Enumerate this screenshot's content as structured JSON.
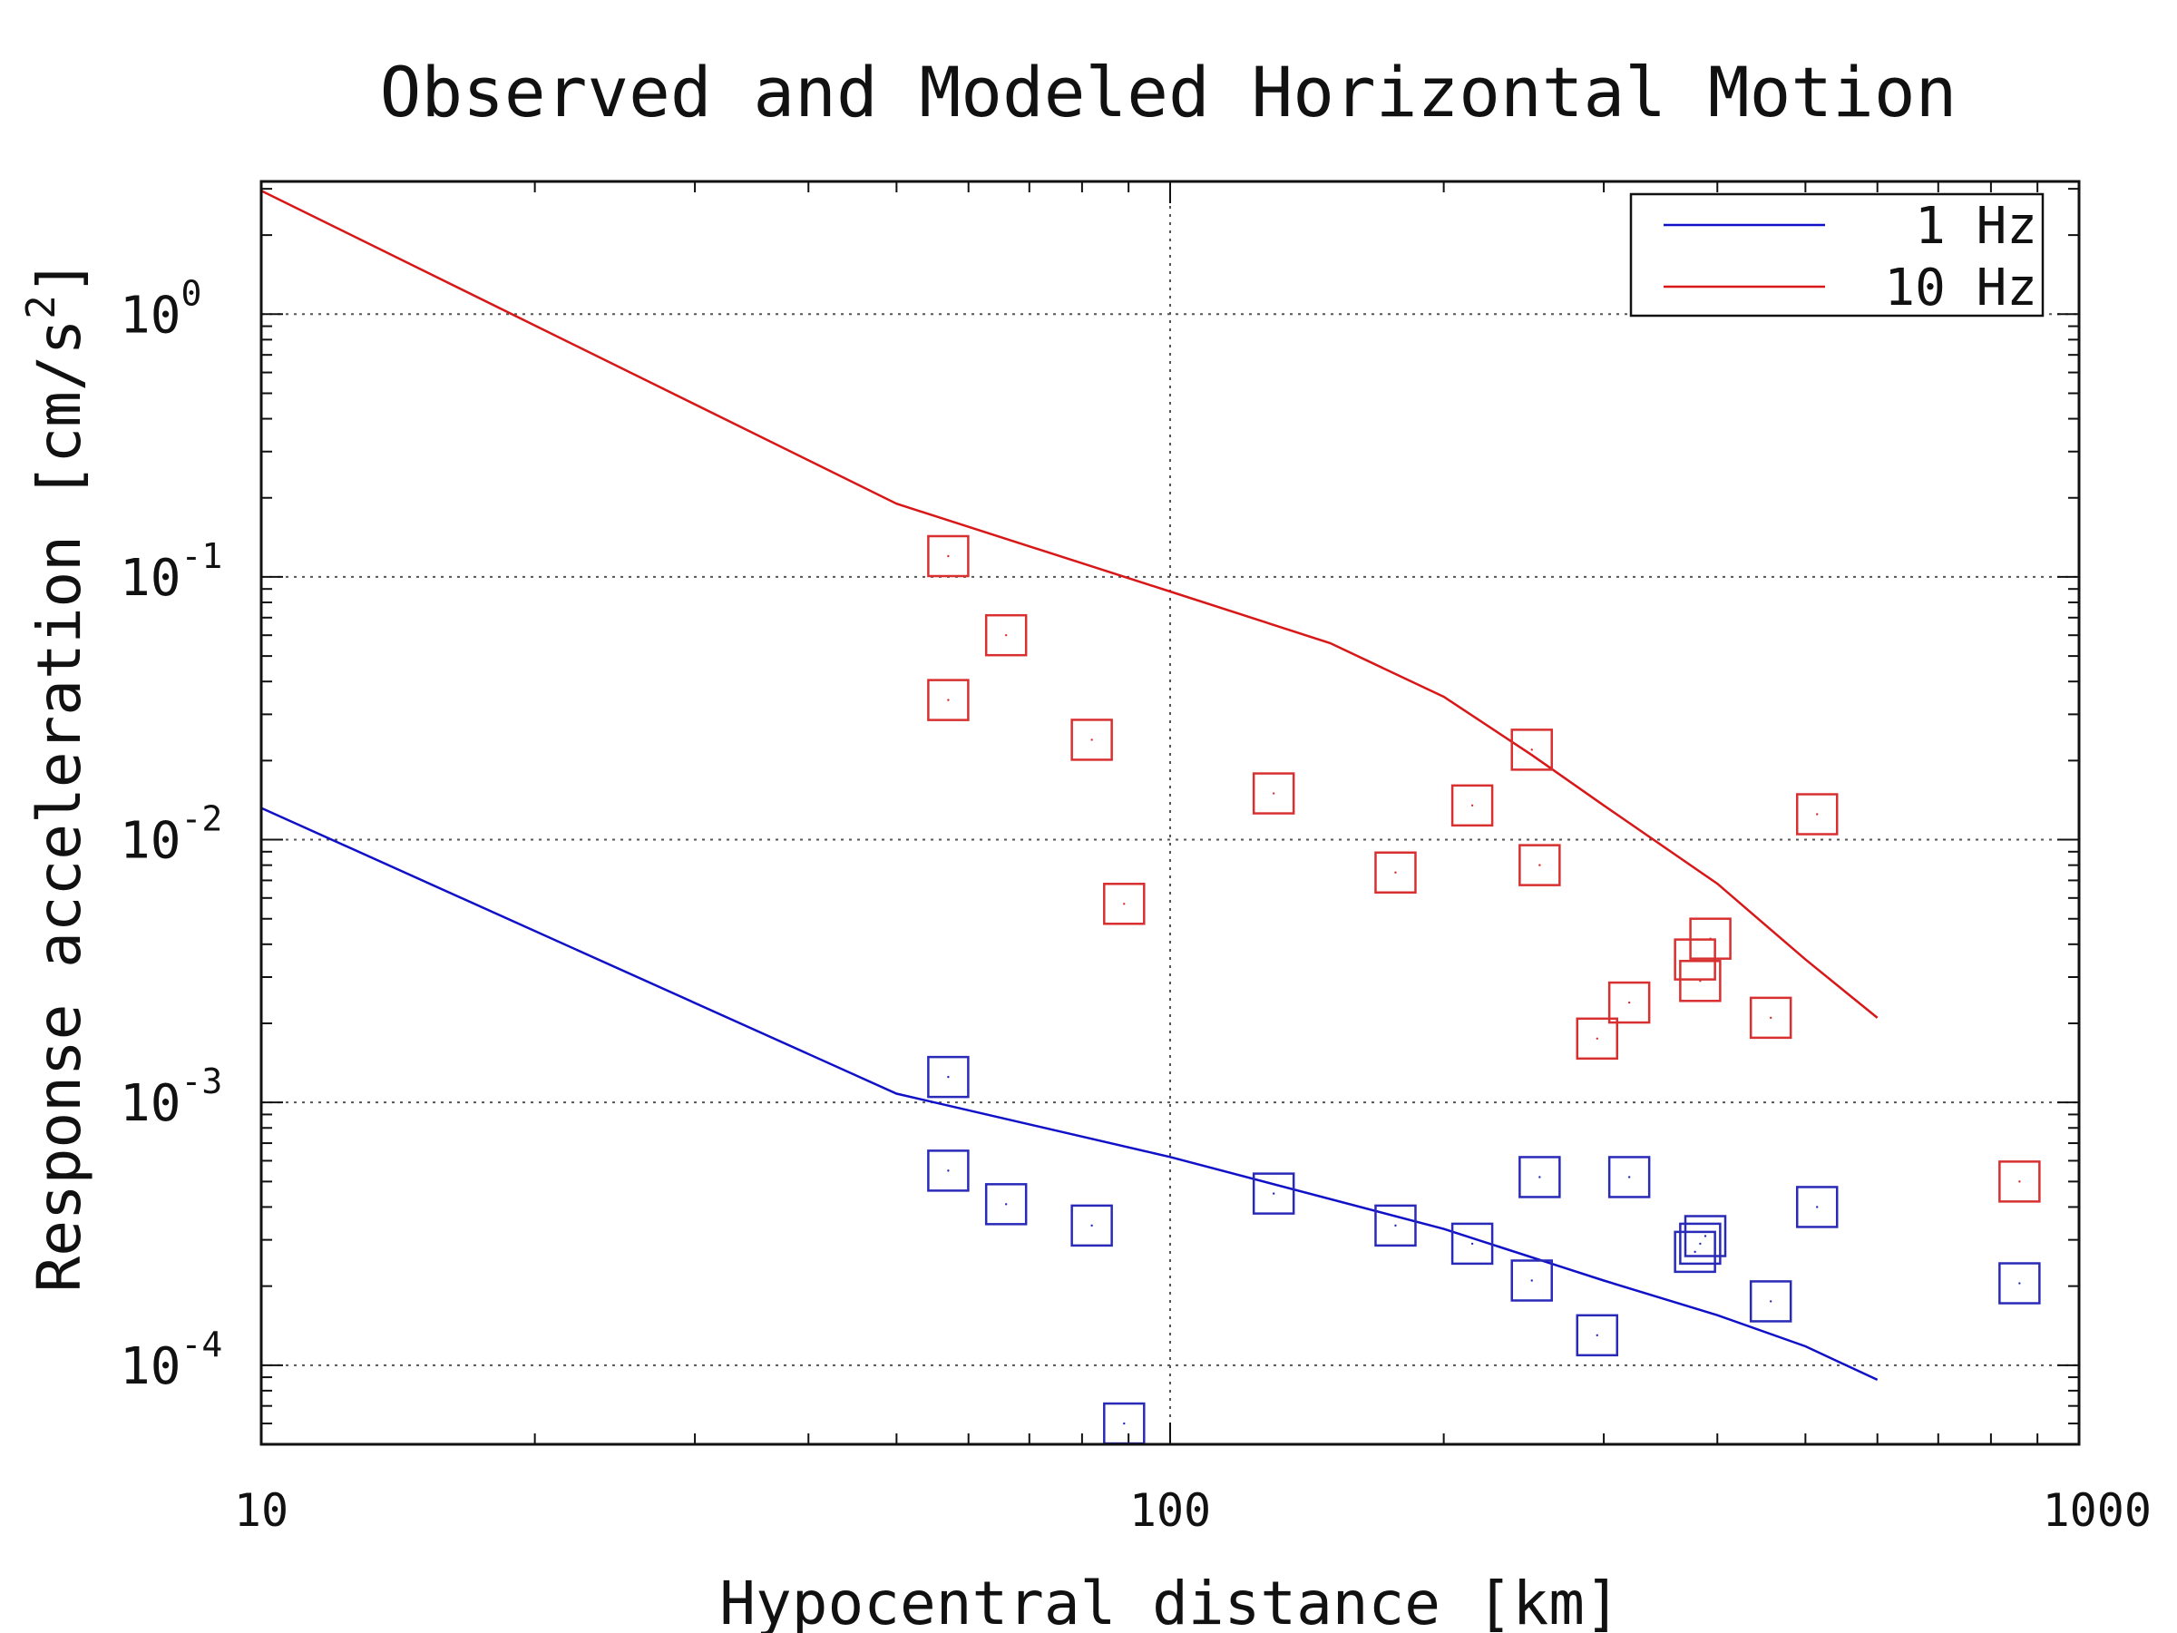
{
  "chart_data": {
    "type": "scatter",
    "title": "Observed and Modeled Horizontal Motion",
    "xlabel": "Hypocentral distance [km]",
    "ylabel": "Response acceleration [cm/s",
    "ylabel_sup": "2",
    "ylabel_close": "]",
    "xscale": "log",
    "yscale": "log",
    "xlim": [
      10,
      1000
    ],
    "ylim": [
      5e-05,
      3.2
    ],
    "grid": true,
    "legend_position": "top-right",
    "x_ticks": [
      {
        "value": 10,
        "label": "10"
      },
      {
        "value": 100,
        "label": "100"
      },
      {
        "value": 1000,
        "label": "1000"
      }
    ],
    "y_ticks": [
      {
        "value": 1,
        "base": "10",
        "exp": "0"
      },
      {
        "value": 0.1,
        "base": "10",
        "exp": "-1"
      },
      {
        "value": 0.01,
        "base": "10",
        "exp": "-2"
      },
      {
        "value": 0.001,
        "base": "10",
        "exp": "-3"
      },
      {
        "value": 0.0001,
        "base": "10",
        "exp": "-4"
      }
    ],
    "model_lines": [
      {
        "name": "1 Hz",
        "color": "#1010c8",
        "points": [
          [
            10,
            0.0132
          ],
          [
            50,
            0.00108
          ],
          [
            100,
            0.00062
          ],
          [
            200,
            0.00033
          ],
          [
            300,
            0.00021
          ],
          [
            400,
            0.000155
          ],
          [
            500,
            0.000118
          ],
          [
            600,
            8.8e-05
          ]
        ]
      },
      {
        "name": "10 Hz",
        "color": "#d81818",
        "points": [
          [
            10,
            2.95
          ],
          [
            50,
            0.19
          ],
          [
            100,
            0.088
          ],
          [
            150,
            0.056
          ],
          [
            200,
            0.035
          ],
          [
            250,
            0.021
          ],
          [
            300,
            0.0135
          ],
          [
            400,
            0.0068
          ],
          [
            500,
            0.0035
          ],
          [
            600,
            0.0021
          ]
        ]
      }
    ],
    "observed": [
      {
        "series": "1 Hz",
        "color": "#2a2ab8",
        "points": [
          [
            57,
            0.00125
          ],
          [
            57,
            0.00055
          ],
          [
            66,
            0.00041
          ],
          [
            82,
            0.00034
          ],
          [
            89,
            6e-05
          ],
          [
            130,
            0.00045
          ],
          [
            177,
            0.00034
          ],
          [
            215,
            0.00029
          ],
          [
            250,
            0.00021
          ],
          [
            255,
            0.00052
          ],
          [
            295,
            0.00013
          ],
          [
            320,
            0.00052
          ],
          [
            378,
            0.00027
          ],
          [
            383,
            0.00029
          ],
          [
            388,
            0.00031
          ],
          [
            458,
            0.000175
          ],
          [
            515,
            0.0004
          ],
          [
            860,
            0.000205
          ]
        ]
      },
      {
        "series": "10 Hz",
        "color": "#d83030",
        "points": [
          [
            57,
            0.12
          ],
          [
            57,
            0.034
          ],
          [
            66,
            0.06
          ],
          [
            82,
            0.024
          ],
          [
            89,
            0.0057
          ],
          [
            130,
            0.015
          ],
          [
            177,
            0.0075
          ],
          [
            215,
            0.0135
          ],
          [
            250,
            0.022
          ],
          [
            255,
            0.008
          ],
          [
            295,
            0.00175
          ],
          [
            320,
            0.0024
          ],
          [
            378,
            0.0035
          ],
          [
            383,
            0.0029
          ],
          [
            393,
            0.0042
          ],
          [
            458,
            0.0021
          ],
          [
            515,
            0.0125
          ],
          [
            860,
            0.0005
          ]
        ]
      }
    ]
  }
}
